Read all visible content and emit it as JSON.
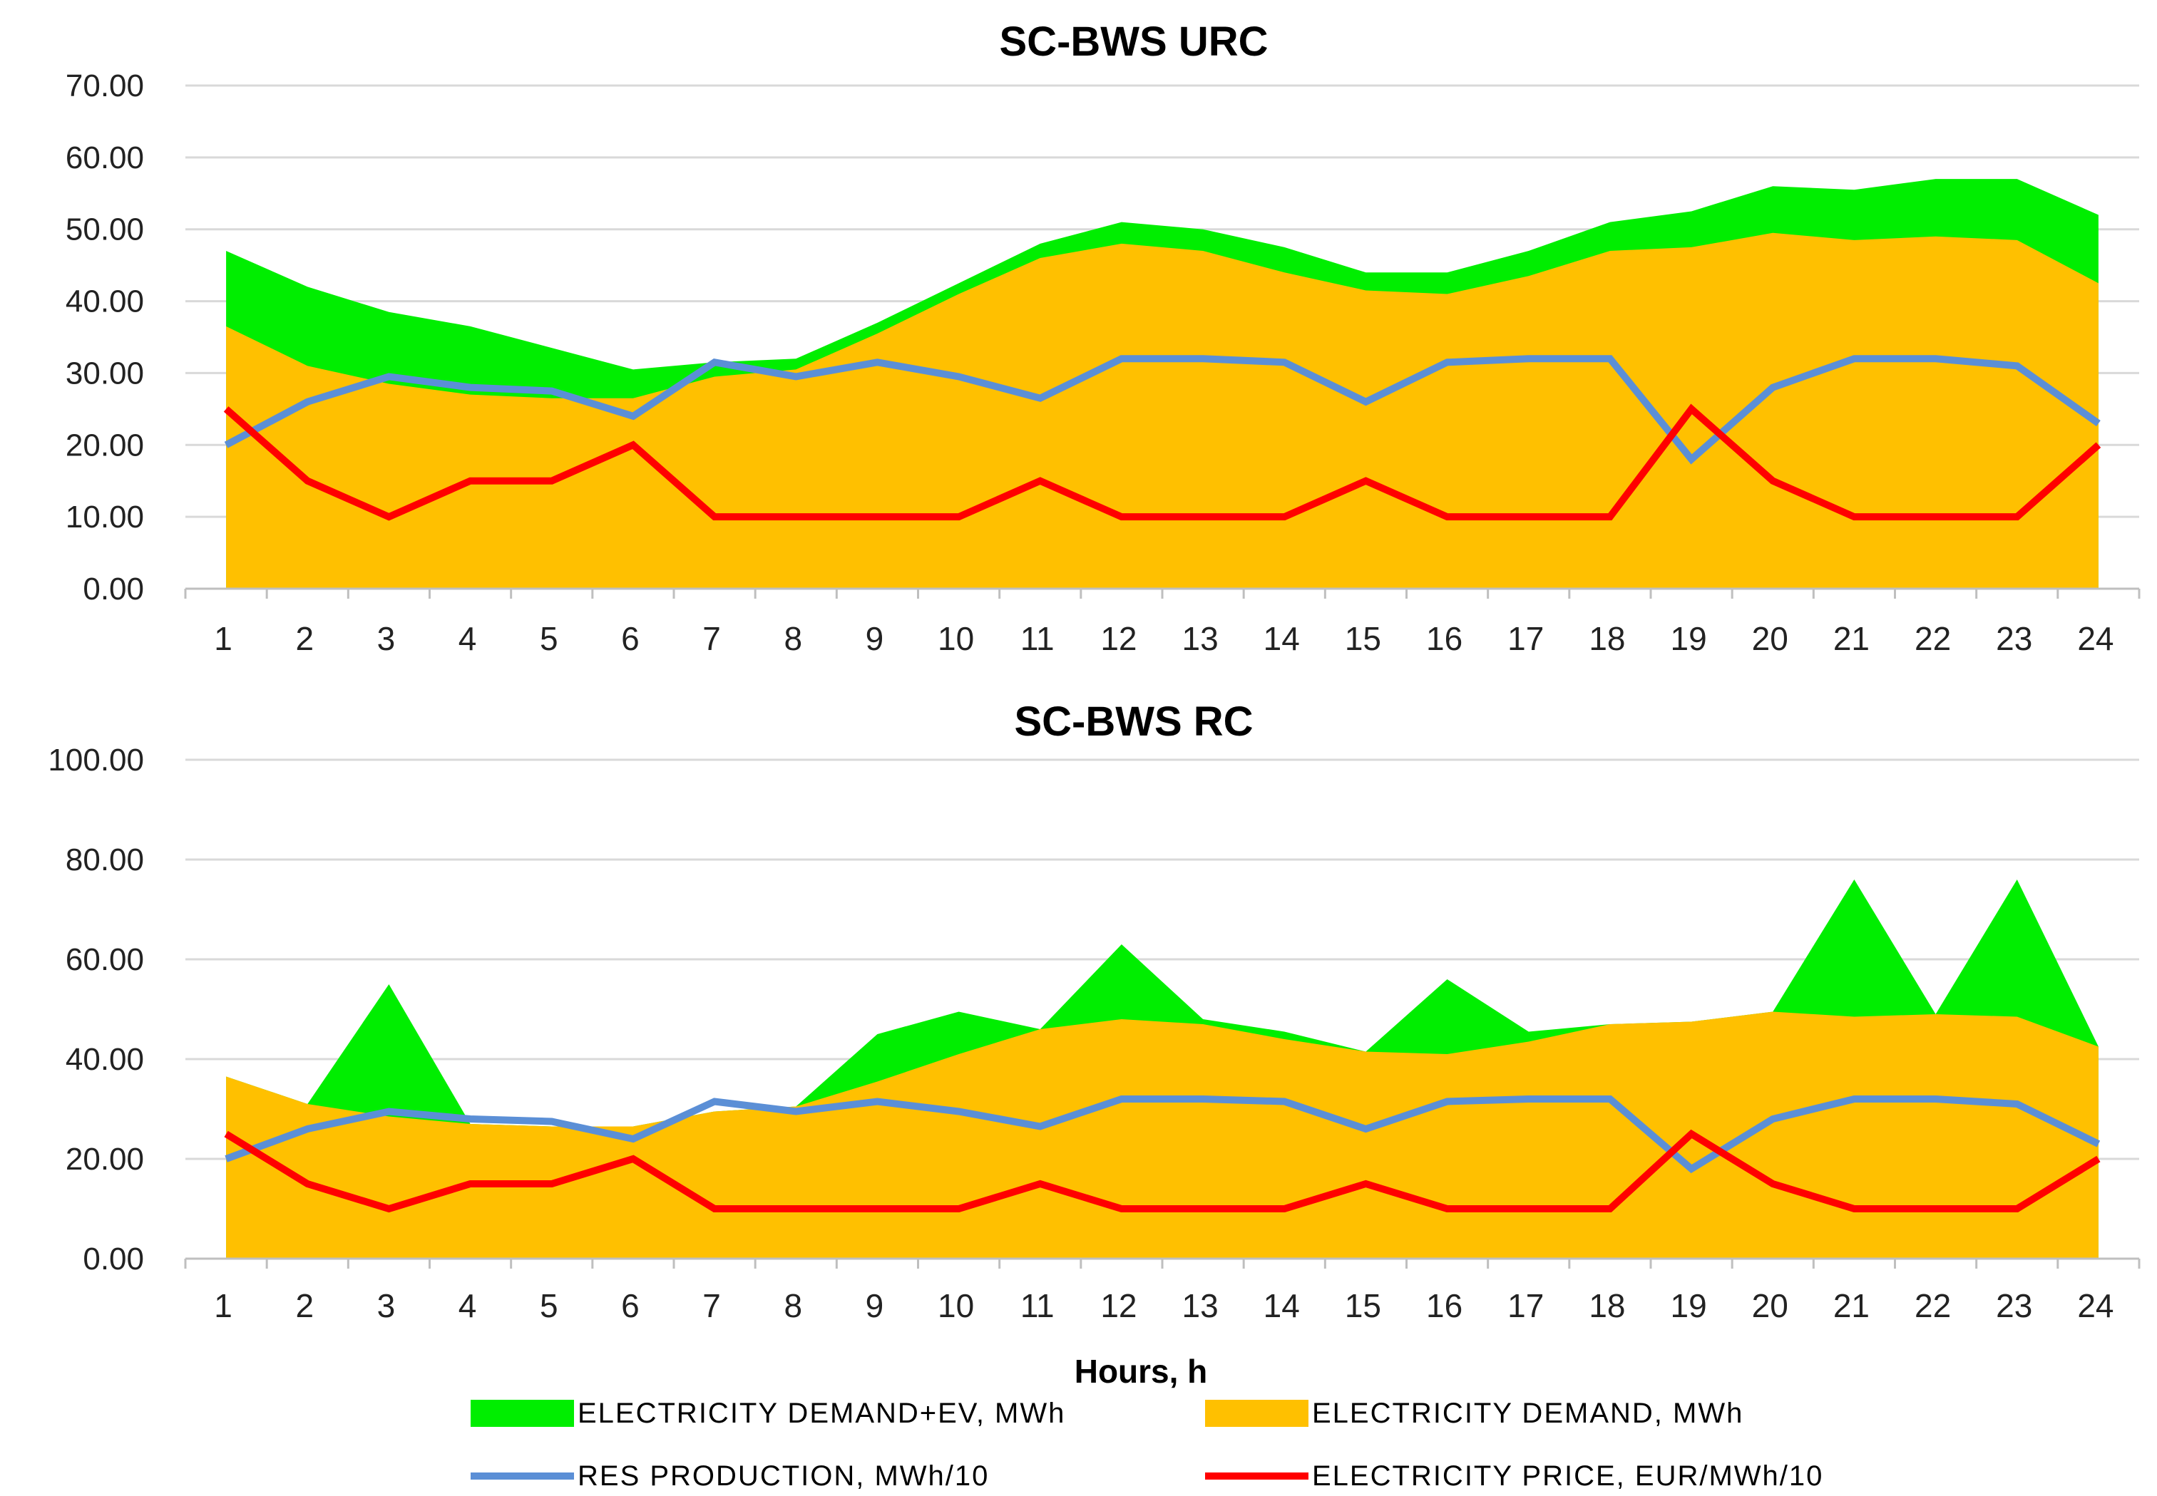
{
  "chart_data": [
    {
      "type": "area",
      "title": "SC-BWS URC",
      "xlabel": "",
      "ylabel": "",
      "ylim": [
        0,
        70
      ],
      "ytick_values": [
        0,
        10,
        20,
        30,
        40,
        50,
        60,
        70
      ],
      "ytick_labels": [
        "0.00",
        "10.00",
        "20.00",
        "30.00",
        "40.00",
        "50.00",
        "60.00",
        "70.00"
      ],
      "grid": true,
      "categories": [
        "1",
        "2",
        "3",
        "4",
        "5",
        "6",
        "7",
        "8",
        "9",
        "10",
        "11",
        "12",
        "13",
        "14",
        "15",
        "16",
        "17",
        "18",
        "19",
        "20",
        "21",
        "22",
        "23",
        "24"
      ],
      "series": [
        {
          "name": "ELECTRICITY DEMAND+EV, MWh",
          "kind": "area",
          "color": "#00ee00",
          "values": [
            47,
            42,
            38.5,
            36.5,
            33.5,
            30.5,
            31.5,
            32,
            37,
            42.5,
            48,
            51,
            50,
            47.5,
            44,
            44,
            47,
            51,
            52.5,
            56,
            55.5,
            57,
            57,
            52
          ]
        },
        {
          "name": "ELECTRICITY DEMAND, MWh",
          "kind": "area",
          "color": "#ffc000",
          "values": [
            36.5,
            31,
            28.5,
            27,
            26.5,
            26.5,
            29.5,
            30.5,
            35.5,
            41,
            46,
            48,
            47,
            44,
            41.5,
            41,
            43.5,
            47,
            47.5,
            49.5,
            48.5,
            49,
            48.5,
            42.5
          ]
        },
        {
          "name": "RES PRODUCTION, MWh/10",
          "kind": "line",
          "color": "#5b8fd6",
          "values": [
            20,
            26,
            29.5,
            28,
            27.5,
            24,
            31.5,
            29.5,
            31.5,
            29.5,
            26.5,
            32,
            32,
            31.5,
            26,
            31.5,
            32,
            32,
            18,
            28,
            32,
            32,
            31,
            23
          ]
        },
        {
          "name": "ELECTRICITY PRICE, EUR/MWh/10",
          "kind": "line",
          "color": "#ff0000",
          "values": [
            25,
            15,
            10,
            15,
            15,
            20,
            10,
            10,
            10,
            10,
            15,
            10,
            10,
            10,
            15,
            10,
            10,
            10,
            25,
            15,
            10,
            10,
            10,
            20
          ]
        }
      ]
    },
    {
      "type": "area",
      "title": "SC-BWS RC",
      "xlabel": "Hours, h",
      "ylabel": "",
      "ylim": [
        0,
        100
      ],
      "ytick_values": [
        0,
        20,
        40,
        60,
        80,
        100
      ],
      "ytick_labels": [
        "0.00",
        "20.00",
        "40.00",
        "60.00",
        "80.00",
        "100.00"
      ],
      "grid": true,
      "categories": [
        "1",
        "2",
        "3",
        "4",
        "5",
        "6",
        "7",
        "8",
        "9",
        "10",
        "11",
        "12",
        "13",
        "14",
        "15",
        "16",
        "17",
        "18",
        "19",
        "20",
        "21",
        "22",
        "23",
        "24"
      ],
      "series": [
        {
          "name": "ELECTRICITY DEMAND+EV, MWh",
          "kind": "area",
          "color": "#00ee00",
          "values": [
            36.5,
            31,
            55,
            27,
            26.5,
            26.5,
            29.5,
            30.5,
            45,
            49.5,
            46,
            63,
            48,
            45.5,
            41.5,
            56,
            45.5,
            47,
            47.5,
            49.5,
            76,
            49,
            76,
            42.5
          ]
        },
        {
          "name": "ELECTRICITY DEMAND, MWh",
          "kind": "area",
          "color": "#ffc000",
          "values": [
            36.5,
            31,
            28.5,
            27,
            26.5,
            26.5,
            29.5,
            30.5,
            35.5,
            41,
            46,
            48,
            47,
            44,
            41.5,
            41,
            43.5,
            47,
            47.5,
            49.5,
            48.5,
            49,
            48.5,
            42.5
          ]
        },
        {
          "name": "RES PRODUCTION, MWh/10",
          "kind": "line",
          "color": "#5b8fd6",
          "values": [
            20,
            26,
            29.5,
            28,
            27.5,
            24,
            31.5,
            29.5,
            31.5,
            29.5,
            26.5,
            32,
            32,
            31.5,
            26,
            31.5,
            32,
            32,
            18,
            28,
            32,
            32,
            31,
            23
          ]
        },
        {
          "name": "ELECTRICITY PRICE, EUR/MWh/10",
          "kind": "line",
          "color": "#ff0000",
          "values": [
            25,
            15,
            10,
            15,
            15,
            20,
            10,
            10,
            10,
            10,
            15,
            10,
            10,
            10,
            15,
            10,
            10,
            10,
            25,
            15,
            10,
            10,
            10,
            20
          ]
        }
      ]
    }
  ],
  "legend": {
    "placement": "bottom",
    "items": [
      {
        "label": "ELECTRICITY DEMAND+EV, MWh",
        "kind": "area",
        "color": "#00ee00"
      },
      {
        "label": "ELECTRICITY DEMAND, MWh",
        "kind": "area",
        "color": "#ffc000"
      },
      {
        "label": "RES PRODUCTION, MWh/10",
        "kind": "line",
        "color": "#5b8fd6"
      },
      {
        "label": "ELECTRICITY PRICE, EUR/MWh/10",
        "kind": "line",
        "color": "#ff0000"
      }
    ]
  }
}
